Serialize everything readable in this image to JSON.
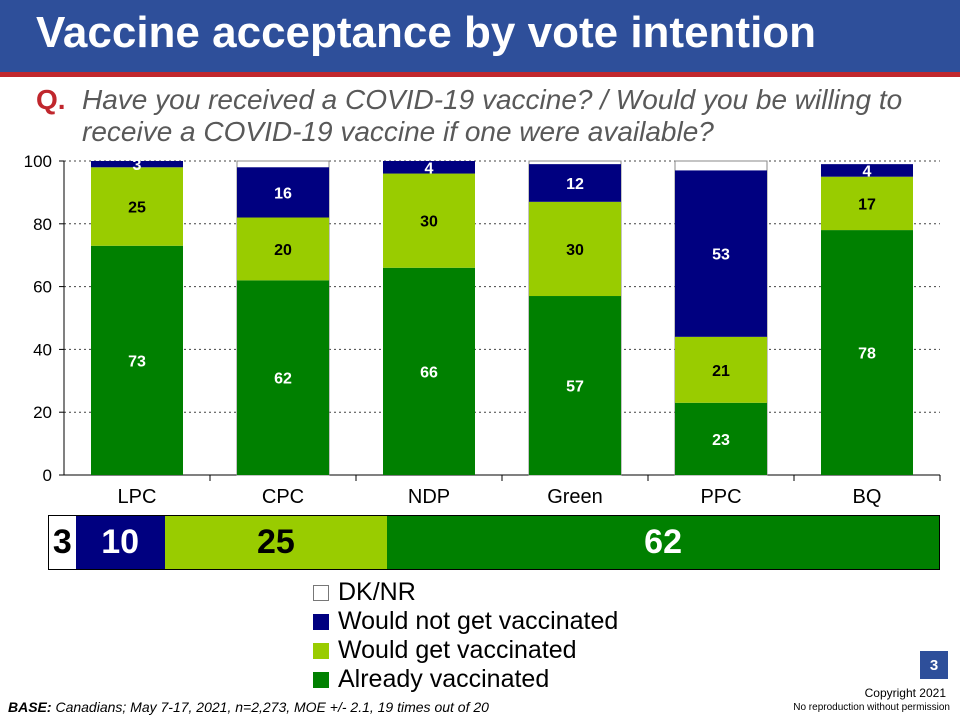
{
  "title": "Vaccine acceptance by vote intention",
  "question": {
    "label": "Q.",
    "text": "Have you received a COVID-19 vaccine? / Would you be willing to receive a COVID-19 vaccine if one were available?"
  },
  "colors": {
    "header": "#2e4f9a",
    "accent_line": "#c0272d",
    "already": "#008000",
    "would_get": "#99cc00",
    "would_not": "#000080",
    "dknr": "#ffffff"
  },
  "chart_data": {
    "type": "bar",
    "stacked": true,
    "categories": [
      "LPC",
      "CPC",
      "NDP",
      "Green",
      "PPC",
      "BQ"
    ],
    "series": [
      {
        "name": "Already vaccinated",
        "key": "already",
        "values": [
          73,
          62,
          66,
          57,
          23,
          78
        ]
      },
      {
        "name": "Would get vaccinated",
        "key": "would_get",
        "values": [
          25,
          20,
          30,
          30,
          21,
          17
        ]
      },
      {
        "name": "Would not get vaccinated",
        "key": "would_not",
        "values": [
          3,
          16,
          4,
          12,
          53,
          4
        ]
      }
    ],
    "dknr_visible": [
      false,
      true,
      false,
      true,
      true,
      false
    ],
    "yticks": [
      0,
      20,
      40,
      60,
      80,
      100
    ],
    "ylim": [
      0,
      100
    ],
    "grid": true,
    "overall": {
      "dknr": 3,
      "would_not": 10,
      "would_get": 25,
      "already": 62
    }
  },
  "legend": [
    {
      "label": "DK/NR",
      "key": "dknr"
    },
    {
      "label": "Would not get vaccinated",
      "key": "would_not"
    },
    {
      "label": "Would get vaccinated",
      "key": "would_get"
    },
    {
      "label": "Already vaccinated",
      "key": "already"
    }
  ],
  "page_number": "3",
  "copyright": "Copyright 2021",
  "no_reproduction": "No reproduction without permission",
  "base": {
    "label": "BASE:",
    "text": " Canadians; May 7-17, 2021, n=2,273, MOE +/- 2.1, 19 times out of 20"
  }
}
